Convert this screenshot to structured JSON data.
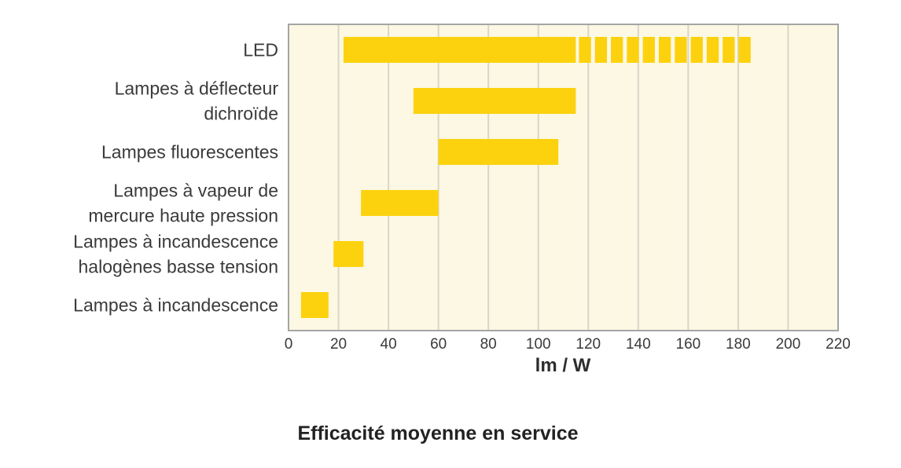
{
  "chart_data": {
    "type": "bar",
    "orientation": "horizontal",
    "title": "Efficacité moyenne en service",
    "xlabel": "lm / W",
    "ylabel": "",
    "xlim": [
      0,
      220
    ],
    "xticks": [
      0,
      20,
      40,
      60,
      80,
      100,
      120,
      140,
      160,
      180,
      200,
      220
    ],
    "grid": true,
    "legend": "none",
    "colors": {
      "bar": "#fcd20f",
      "plot_background": "#fcf8e3",
      "frame": "#a5a5a5",
      "gridline": "#d9d6c9"
    },
    "categories": [
      {
        "label_lines": [
          "LED"
        ],
        "range": [
          22,
          115
        ],
        "extended_range": [
          115,
          185
        ],
        "extended_style": "dashed"
      },
      {
        "label_lines": [
          "Lampes à déflecteur",
          "dichroïde"
        ],
        "range": [
          50,
          115
        ]
      },
      {
        "label_lines": [
          "Lampes fluorescentes"
        ],
        "range": [
          60,
          108
        ]
      },
      {
        "label_lines": [
          "Lampes à vapeur de",
          "mercure haute pression"
        ],
        "range": [
          29,
          60
        ]
      },
      {
        "label_lines": [
          "Lampes à incandescence",
          "halogènes basse tension"
        ],
        "range": [
          18,
          30
        ]
      },
      {
        "label_lines": [
          "Lampes à incandescence"
        ],
        "range": [
          5,
          16
        ]
      }
    ]
  }
}
